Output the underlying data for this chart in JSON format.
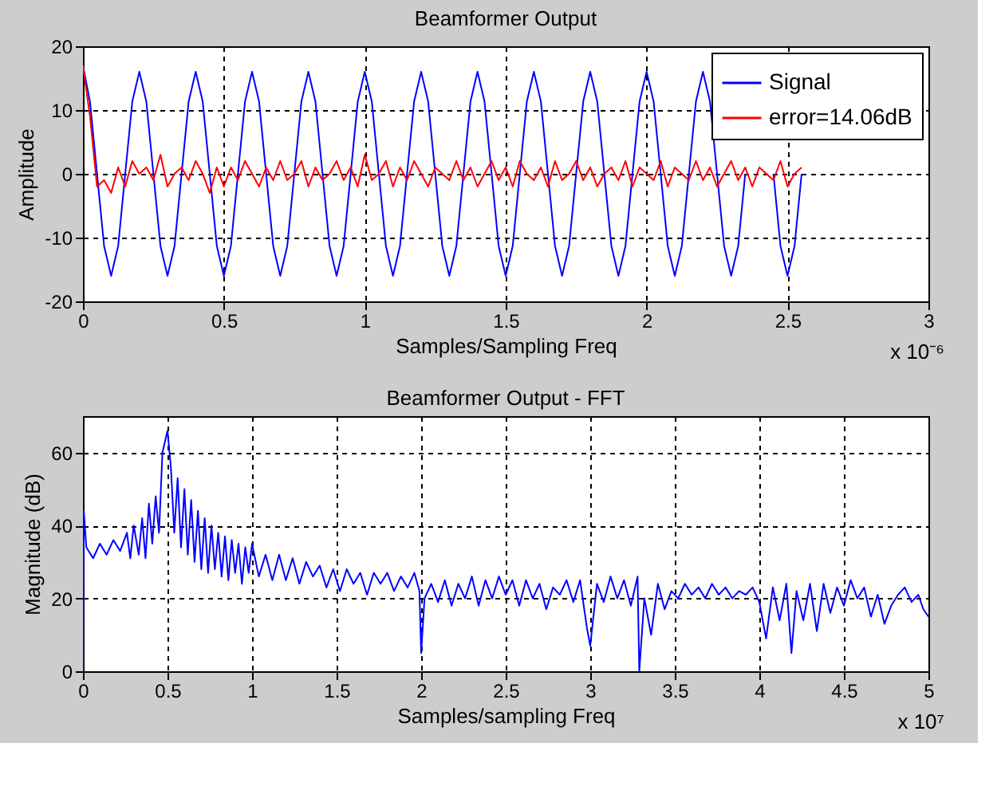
{
  "chart_data": [
    {
      "type": "line",
      "title": "Beamformer Output",
      "xlabel": "Samples/Sampling Freq",
      "ylabel": "Amplitude",
      "xlim": [
        0,
        3
      ],
      "xticks": [
        0,
        0.5,
        1,
        1.5,
        2,
        2.5,
        3
      ],
      "ylim": [
        -20,
        20
      ],
      "yticks": [
        -20,
        -10,
        0,
        10,
        20
      ],
      "grid": true,
      "legend": "top right",
      "annotations": [
        "x 10⁻⁶"
      ],
      "x": [
        0,
        0.025,
        0.05,
        0.075,
        0.1,
        0.125,
        0.15,
        0.175,
        0.2,
        0.225,
        0.25,
        0.275,
        0.3,
        0.325,
        0.35,
        0.375,
        0.4,
        0.425,
        0.45,
        0.475,
        0.5,
        0.525,
        0.55,
        0.575,
        0.6,
        0.625,
        0.65,
        0.675,
        0.7,
        0.725,
        0.75,
        0.775,
        0.8,
        0.825,
        0.85,
        0.875,
        0.9,
        0.925,
        0.95,
        0.975,
        1,
        1.025,
        1.05,
        1.075,
        1.1,
        1.125,
        1.15,
        1.175,
        1.2,
        1.225,
        1.25,
        1.275,
        1.3,
        1.325,
        1.35,
        1.375,
        1.4,
        1.425,
        1.45,
        1.475,
        1.5,
        1.525,
        1.55,
        1.575,
        1.6,
        1.625,
        1.65,
        1.675,
        1.7,
        1.725,
        1.75,
        1.775,
        1.8,
        1.825,
        1.85,
        1.875,
        1.9,
        1.925,
        1.95,
        1.975,
        2,
        2.025,
        2.05,
        2.075,
        2.1,
        2.125,
        2.15,
        2.175,
        2.2,
        2.225,
        2.25,
        2.275,
        2.3,
        2.325,
        2.35,
        2.375,
        2.4,
        2.425,
        2.45,
        2.475,
        2.5,
        2.525,
        2.55
      ],
      "series": [
        {
          "name": "Signal",
          "color": "#0000ff",
          "values": [
            17,
            11.3,
            0,
            -11.3,
            -16,
            -11.3,
            0,
            11.3,
            16,
            11.3,
            0,
            -11.3,
            -16,
            -11.3,
            0,
            11.3,
            16,
            11.3,
            0,
            -11.3,
            -16,
            -11.3,
            0,
            11.3,
            16,
            11.3,
            0,
            -11.3,
            -16,
            -11.3,
            0,
            11.3,
            16,
            11.3,
            0,
            -11.3,
            -16,
            -11.3,
            0,
            11.3,
            16,
            11.3,
            0,
            -11.3,
            -16,
            -11.3,
            0,
            11.3,
            16,
            11.3,
            0,
            -11.3,
            -16,
            -11.3,
            0,
            11.3,
            16,
            11.3,
            0,
            -11.3,
            -16,
            -11.3,
            0,
            11.3,
            16,
            11.3,
            0,
            -11.3,
            -16,
            -11.3,
            0,
            11.3,
            16,
            11.3,
            0,
            -11.3,
            -16,
            -11.3,
            0,
            11.3,
            16,
            11.3,
            0,
            -11.3,
            -16,
            -11.3,
            0,
            11.3,
            16,
            11.3,
            0,
            -11.3,
            -16,
            -11.3,
            0,
            null,
            null,
            null,
            0,
            -11.3,
            -16,
            -11.3,
            0
          ]
        },
        {
          "name": "error=14.06dB",
          "color": "#ff0000",
          "values": [
            17,
            9,
            -2,
            -1,
            -3,
            1,
            -2,
            2,
            0,
            1,
            -1,
            3,
            -2,
            0,
            1,
            -1,
            2,
            0,
            -3,
            1,
            -2,
            1,
            -1,
            2,
            0,
            -2,
            1,
            -1,
            2,
            -1,
            0,
            2,
            -2,
            1,
            -1,
            0,
            2,
            -1,
            1,
            -2,
            3,
            -1,
            0,
            2,
            -2,
            1,
            -1,
            2,
            0,
            -2,
            1,
            0,
            -1,
            2,
            -1,
            1,
            -2,
            0,
            2,
            -1,
            1,
            -2,
            2,
            0,
            -1,
            1,
            -2,
            2,
            -1,
            0,
            2,
            -1,
            1,
            -2,
            0,
            1,
            -1,
            2,
            -2,
            1,
            0,
            -1,
            2,
            -2,
            1,
            0,
            -1,
            2,
            -1,
            1,
            -2,
            0,
            2,
            -1,
            1,
            -2,
            1,
            0,
            -1,
            2,
            -2,
            0,
            1
          ]
        }
      ]
    },
    {
      "type": "line",
      "title": "Beamformer Output - FFT",
      "xlabel": "Samples/sampling Freq",
      "ylabel": "Magnitude (dB)",
      "xlim": [
        0,
        5
      ],
      "xticks": [
        0,
        0.5,
        1,
        1.5,
        2,
        2.5,
        3,
        3.5,
        4,
        4.5,
        5
      ],
      "ylim": [
        0,
        70
      ],
      "yticks": [
        0,
        20,
        40,
        60
      ],
      "grid": true,
      "annotations": [
        "x 10⁷"
      ],
      "series": [
        {
          "color": "#0000ff",
          "x": [
            0,
            0.005,
            0.02,
            0.06,
            0.1,
            0.14,
            0.18,
            0.22,
            0.26,
            0.28,
            0.3,
            0.33,
            0.35,
            0.37,
            0.39,
            0.41,
            0.43,
            0.45,
            0.47,
            0.5,
            0.52,
            0.54,
            0.56,
            0.58,
            0.6,
            0.62,
            0.64,
            0.66,
            0.68,
            0.7,
            0.72,
            0.74,
            0.76,
            0.78,
            0.8,
            0.82,
            0.84,
            0.86,
            0.88,
            0.9,
            0.92,
            0.94,
            0.96,
            0.98,
            1.0,
            1.04,
            1.08,
            1.12,
            1.16,
            1.2,
            1.24,
            1.28,
            1.32,
            1.36,
            1.4,
            1.44,
            1.48,
            1.52,
            1.56,
            1.6,
            1.64,
            1.68,
            1.72,
            1.76,
            1.8,
            1.84,
            1.88,
            1.92,
            1.96,
            1.99,
            2.0,
            2.02,
            2.06,
            2.1,
            2.14,
            2.18,
            2.22,
            2.26,
            2.3,
            2.34,
            2.38,
            2.42,
            2.46,
            2.5,
            2.54,
            2.58,
            2.62,
            2.66,
            2.7,
            2.74,
            2.78,
            2.82,
            2.86,
            2.9,
            2.94,
            2.98,
            3.0,
            3.04,
            3.08,
            3.12,
            3.16,
            3.2,
            3.24,
            3.28,
            3.29,
            3.32,
            3.36,
            3.4,
            3.44,
            3.48,
            3.52,
            3.56,
            3.6,
            3.64,
            3.68,
            3.72,
            3.76,
            3.8,
            3.84,
            3.88,
            3.92,
            3.96,
            4.0,
            4.04,
            4.08,
            4.12,
            4.16,
            4.19,
            4.22,
            4.26,
            4.3,
            4.34,
            4.38,
            4.42,
            4.46,
            4.5,
            4.54,
            4.58,
            4.62,
            4.66,
            4.7,
            4.74,
            4.78,
            4.82,
            4.86,
            4.9,
            4.94,
            4.97,
            5.0
          ],
          "values": [
            0,
            44,
            34,
            31,
            35,
            32,
            36,
            33,
            38,
            31,
            40,
            32,
            42,
            31,
            46,
            35,
            48,
            38,
            60,
            66,
            56,
            38,
            53,
            34,
            50,
            32,
            47,
            30,
            44,
            28,
            42,
            27,
            40,
            28,
            38,
            26,
            37,
            25,
            36,
            27,
            35,
            24,
            34,
            27,
            35,
            26,
            32,
            25,
            32,
            25,
            31,
            24,
            30,
            26,
            29,
            23,
            28,
            22,
            28,
            24,
            27,
            21,
            27,
            24,
            27,
            22,
            26,
            23,
            27,
            22,
            5,
            20,
            24,
            19,
            25,
            18,
            24,
            20,
            26,
            18,
            25,
            20,
            26,
            21,
            25,
            18,
            25,
            20,
            24,
            17,
            23,
            21,
            25,
            19,
            25,
            12,
            7,
            24,
            19,
            26,
            20,
            25,
            18,
            26,
            0,
            20,
            10,
            24,
            17,
            22,
            20,
            24,
            21,
            23,
            20,
            24,
            21,
            23,
            20,
            22,
            21,
            23,
            19,
            9,
            23,
            14,
            24,
            5,
            22,
            14,
            24,
            11,
            24,
            16,
            23,
            18,
            25,
            20,
            23,
            15,
            21,
            13,
            18,
            21,
            23,
            19,
            21,
            17,
            15
          ]
        }
      ]
    }
  ]
}
